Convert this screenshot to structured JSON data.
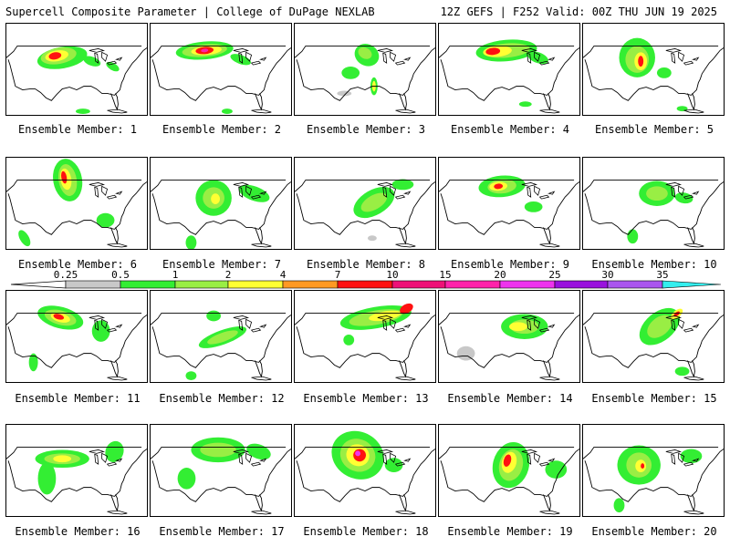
{
  "header": {
    "title": "Supercell Composite Parameter | College of DuPage NEXLAB",
    "run_info": "12Z GEFS | F252 Valid: 00Z THU JUN 19 2025"
  },
  "colorbar": {
    "ticks": [
      "0.25",
      "0.5",
      "1",
      "2",
      "4",
      "7",
      "10",
      "15",
      "20",
      "25",
      "30",
      "35"
    ],
    "colors": [
      "#c8c8c8",
      "#33ee33",
      "#99ee44",
      "#ffff33",
      "#ff9922",
      "#ff1111",
      "#ee1177",
      "#ff22aa",
      "#ee33ee",
      "#9911dd",
      "#aa55ee",
      "#33eeee"
    ]
  },
  "panels": [
    {
      "label": "Ensemble Member: 1"
    },
    {
      "label": "Ensemble Member: 2"
    },
    {
      "label": "Ensemble Member: 3"
    },
    {
      "label": "Ensemble Member: 4"
    },
    {
      "label": "Ensemble Member: 5"
    },
    {
      "label": "Ensemble Member: 6"
    },
    {
      "label": "Ensemble Member: 7"
    },
    {
      "label": "Ensemble Member: 8"
    },
    {
      "label": "Ensemble Member: 9"
    },
    {
      "label": "Ensemble Member: 10"
    },
    {
      "label": "Ensemble Member: 11"
    },
    {
      "label": "Ensemble Member: 12"
    },
    {
      "label": "Ensemble Member: 13"
    },
    {
      "label": "Ensemble Member: 14"
    },
    {
      "label": "Ensemble Member: 15"
    },
    {
      "label": "Ensemble Member: 16"
    },
    {
      "label": "Ensemble Member: 17"
    },
    {
      "label": "Ensemble Member: 18"
    },
    {
      "label": "Ensemble Member: 19"
    },
    {
      "label": "Ensemble Member: 20"
    }
  ]
}
